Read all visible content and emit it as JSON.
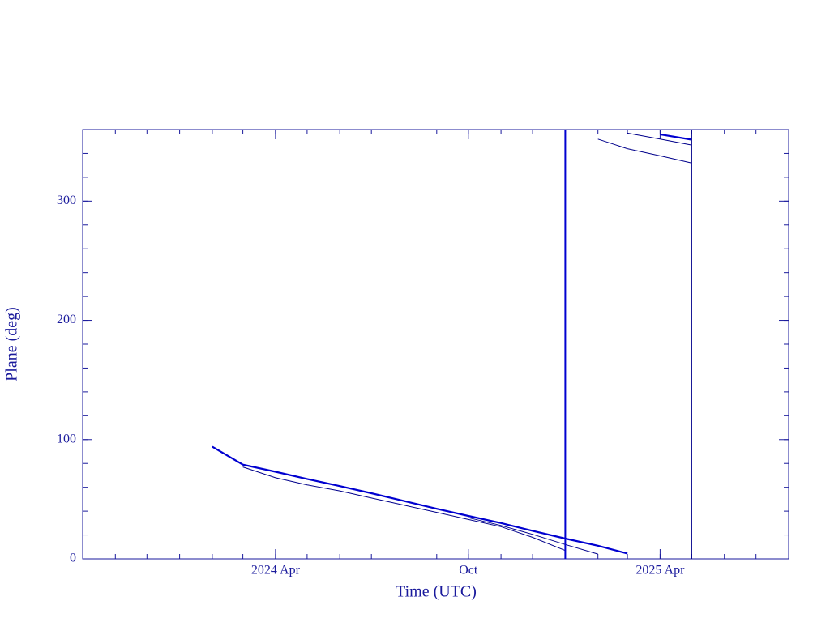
{
  "chart_data": {
    "type": "line",
    "x_label": "Time (UTC)",
    "y_label": "Plane (deg)",
    "xlim": [
      "2023-10",
      "2025-08"
    ],
    "xticks": [
      {
        "value": "2024-04",
        "label": "2024 Apr"
      },
      {
        "value": "2024-10",
        "label": "Oct"
      },
      {
        "value": "2025-04",
        "label": "2025 Apr"
      }
    ],
    "ylim": [
      0,
      360
    ],
    "yticks": [
      0,
      100,
      200,
      300
    ],
    "axis_color": "#1a1a9c",
    "series": [
      {
        "color": "#0000d0",
        "width": 2.2,
        "x": [
          "2024-02",
          "2024-03",
          "2024-04",
          "2024-05",
          "2024-06",
          "2024-07",
          "2024-08",
          "2024-09",
          "2024-10",
          "2024-11",
          "2024-12",
          "2025-01",
          "2025-02",
          "2025-03"
        ],
        "values": [
          94,
          79,
          73,
          67,
          61,
          55,
          48.5,
          42,
          36,
          30,
          23.5,
          17,
          11,
          4.5
        ]
      },
      {
        "color": "#0000d0",
        "width": 2.2,
        "x": [
          "2025-04",
          "2025-05"
        ],
        "values": [
          356,
          351.5
        ]
      },
      {
        "color": "#00008b",
        "width": 1,
        "x": [
          "2024-03",
          "2024-04",
          "2024-05",
          "2024-06",
          "2024-07",
          "2024-08",
          "2024-09",
          "2024-10",
          "2024-11",
          "2024-12",
          "2025-01"
        ],
        "values": [
          77,
          68,
          62,
          57,
          51,
          45,
          39,
          33,
          27,
          18,
          7
        ]
      },
      {
        "color": "#00008b",
        "width": 1,
        "x": [
          "2025-02",
          "2025-03",
          "2025-04",
          "2025-05"
        ],
        "values": [
          352,
          344,
          338,
          332
        ]
      },
      {
        "color": "#00008b",
        "width": 1,
        "x": [
          "2024-10",
          "2024-11",
          "2024-12",
          "2025-01",
          "2025-02"
        ],
        "values": [
          34.5,
          28,
          20.5,
          12,
          4
        ]
      },
      {
        "color": "#00008b",
        "width": 1,
        "x": [
          "2025-03",
          "2025-04",
          "2025-05"
        ],
        "values": [
          357,
          352,
          347
        ]
      },
      {
        "color": "#0000d0",
        "width": 2,
        "x": [
          "2025-01",
          "2025-01"
        ],
        "values": [
          0,
          360
        ]
      },
      {
        "color": "#00008b",
        "width": 1,
        "x": [
          "2025-05",
          "2025-05"
        ],
        "values": [
          0,
          360
        ]
      }
    ]
  }
}
